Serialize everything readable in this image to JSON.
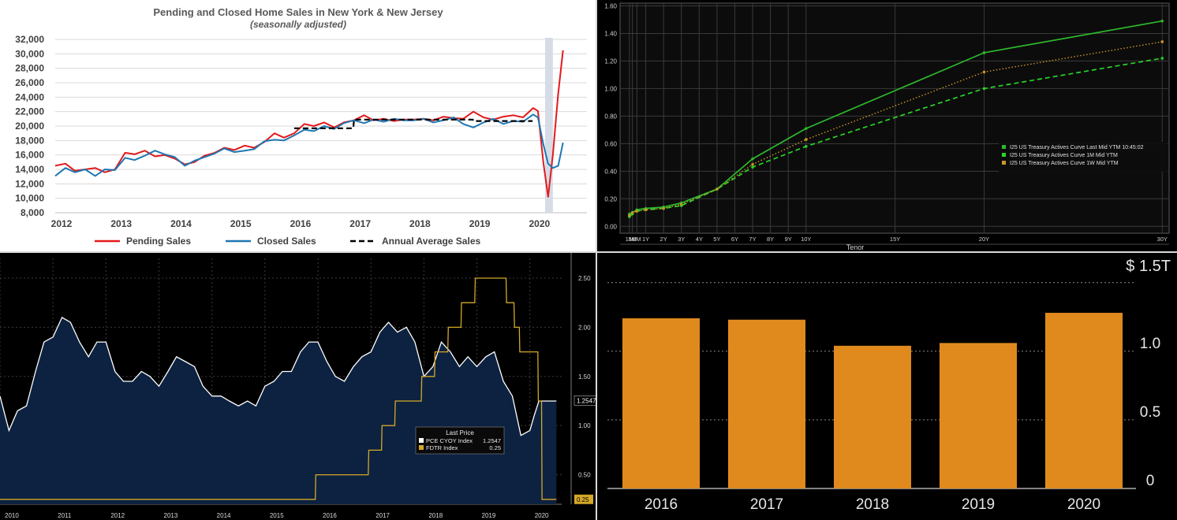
{
  "chart_data": [
    {
      "type": "line",
      "title": "Pending and Closed Home Sales in New York & New Jersey",
      "subtitle": "(seasonally adjusted)",
      "xlabel": "",
      "ylabel": "",
      "x_ticks": [
        "2012",
        "2013",
        "2014",
        "2015",
        "2016",
        "2017",
        "2018",
        "2019",
        "2020"
      ],
      "y_ticks": [
        "8,000",
        "10,000",
        "12,000",
        "14,000",
        "16,000",
        "18,000",
        "20,000",
        "22,000",
        "24,000",
        "26,000",
        "28,000",
        "30,000",
        "32,000"
      ],
      "xlim": [
        2012,
        2020.9
      ],
      "ylim": [
        8000,
        32000
      ],
      "grid": true,
      "legend": "bottom",
      "shaded_period": [
        2020.2,
        2020.33
      ],
      "series": [
        {
          "name": "Pending Sales",
          "color": "#e31a1c",
          "style": "solid",
          "x": [
            2012,
            2012.17,
            2012.33,
            2012.5,
            2012.67,
            2012.83,
            2013,
            2013.17,
            2013.33,
            2013.5,
            2013.67,
            2013.83,
            2014,
            2014.17,
            2014.33,
            2014.5,
            2014.67,
            2014.83,
            2015,
            2015.17,
            2015.33,
            2015.5,
            2015.67,
            2015.83,
            2016,
            2016.17,
            2016.33,
            2016.5,
            2016.67,
            2016.83,
            2017,
            2017.17,
            2017.33,
            2017.5,
            2017.67,
            2017.83,
            2018,
            2018.17,
            2018.33,
            2018.5,
            2018.67,
            2018.83,
            2019,
            2019.17,
            2019.33,
            2019.5,
            2019.67,
            2019.83,
            2020,
            2020.08,
            2020.17,
            2020.25,
            2020.33,
            2020.42,
            2020.5
          ],
          "y": [
            14500,
            14800,
            13800,
            14000,
            14200,
            13600,
            14000,
            16300,
            16100,
            16600,
            15800,
            16000,
            15500,
            14700,
            15000,
            15900,
            16300,
            17000,
            16700,
            17300,
            17000,
            17800,
            19000,
            18400,
            19000,
            20300,
            20000,
            20500,
            19800,
            20500,
            20800,
            21500,
            20800,
            21000,
            20700,
            20900,
            20900,
            21000,
            20800,
            21300,
            21100,
            21000,
            22000,
            21200,
            20900,
            21300,
            21500,
            21200,
            22500,
            22100,
            15000,
            10200,
            16000,
            24500,
            30500
          ]
        },
        {
          "name": "Closed Sales",
          "color": "#1f77b4",
          "style": "solid",
          "x": [
            2012,
            2012.17,
            2012.33,
            2012.5,
            2012.67,
            2012.83,
            2013,
            2013.17,
            2013.33,
            2013.5,
            2013.67,
            2013.83,
            2014,
            2014.17,
            2014.33,
            2014.5,
            2014.67,
            2014.83,
            2015,
            2015.17,
            2015.33,
            2015.5,
            2015.67,
            2015.83,
            2016,
            2016.17,
            2016.33,
            2016.5,
            2016.67,
            2016.83,
            2017,
            2017.17,
            2017.33,
            2017.5,
            2017.67,
            2017.83,
            2018,
            2018.17,
            2018.33,
            2018.5,
            2018.67,
            2018.83,
            2019,
            2019.17,
            2019.33,
            2019.5,
            2019.67,
            2019.83,
            2020,
            2020.08,
            2020.17,
            2020.25,
            2020.33,
            2020.42,
            2020.5
          ],
          "y": [
            13100,
            14200,
            13600,
            14000,
            13100,
            14000,
            13900,
            15600,
            15300,
            15900,
            16600,
            16100,
            15700,
            14500,
            15200,
            15700,
            16200,
            16900,
            16400,
            16600,
            16800,
            17900,
            18100,
            18000,
            18700,
            19500,
            19300,
            20000,
            19600,
            20400,
            20800,
            20400,
            20900,
            20600,
            21000,
            20800,
            20800,
            21000,
            20500,
            20800,
            21200,
            20300,
            19800,
            20500,
            21000,
            20300,
            20700,
            20600,
            21600,
            21200,
            17500,
            14800,
            14200,
            14500,
            17700
          ]
        },
        {
          "name": "Annual Average Sales",
          "color": "#000000",
          "style": "dashed",
          "x": [
            2016,
            2016.99,
            2017,
            2017.99,
            2018,
            2018.99,
            2019,
            2019.99
          ],
          "y": [
            19700,
            19700,
            20900,
            20900,
            20900,
            20900,
            20700,
            20700
          ]
        }
      ]
    },
    {
      "type": "line",
      "title": "",
      "xlabel": "Tenor",
      "ylabel": "",
      "categories": [
        "1M",
        "3M",
        "6M",
        "1Y",
        "2Y",
        "3Y",
        "4Y",
        "5Y",
        "6Y",
        "7Y",
        "8Y",
        "9Y",
        "10Y",
        "15Y",
        "20Y",
        "30Y"
      ],
      "tenor_years": [
        0.083,
        0.25,
        0.5,
        1,
        2,
        3,
        4,
        5,
        6,
        7,
        8,
        9,
        10,
        15,
        20,
        30
      ],
      "y_ticks": [
        "0.00",
        "0.20",
        "0.40",
        "0.60",
        "0.80",
        "1.00",
        "1.20",
        "1.40",
        "1.60"
      ],
      "ylim": [
        -0.05,
        1.62
      ],
      "grid": true,
      "legend": "right",
      "series": [
        {
          "name": "I25 US Treasury Actives Curve Last Mid YTM 10:45:02",
          "color": "#2db82d",
          "style": "solid",
          "x": [
            0.083,
            0.25,
            0.5,
            1,
            2,
            3,
            5,
            7,
            10,
            20,
            30
          ],
          "y": [
            0.09,
            0.1,
            0.12,
            0.13,
            0.14,
            0.17,
            0.27,
            0.49,
            0.71,
            1.26,
            1.49
          ]
        },
        {
          "name": "I25 US Treasury Actives Curve 1M Mid YTM",
          "color": "#28d428",
          "style": "dashed",
          "x": [
            0.083,
            0.25,
            0.5,
            1,
            2,
            3,
            5,
            7,
            10,
            20,
            30
          ],
          "y": [
            0.07,
            0.09,
            0.11,
            0.12,
            0.13,
            0.15,
            0.27,
            0.43,
            0.58,
            1.0,
            1.22
          ]
        },
        {
          "name": "I25 US Treasury Actives Curve 1W Mid YTM",
          "color": "#c8962a",
          "style": "dotted",
          "x": [
            0.083,
            0.25,
            0.5,
            1,
            2,
            3,
            5,
            7,
            10,
            20,
            30
          ],
          "y": [
            0.08,
            0.1,
            0.11,
            0.12,
            0.13,
            0.16,
            0.27,
            0.45,
            0.63,
            1.12,
            1.34
          ]
        }
      ]
    },
    {
      "type": "line",
      "title": "",
      "xlabel": "",
      "ylabel": "",
      "x_ticks": [
        "2010",
        "2011",
        "2012",
        "2013",
        "2014",
        "2015",
        "2016",
        "2017",
        "2018",
        "2019",
        "2020"
      ],
      "y_ticks": [
        "0.50",
        "1.00",
        "1.50",
        "2.00",
        "2.50"
      ],
      "xlim": [
        2010,
        2020.6
      ],
      "ylim": [
        0.2,
        2.7
      ],
      "legend_title": "Last Price",
      "legend": "bottom-right",
      "series": [
        {
          "name": "PCE CYOY Index",
          "last": "1.2547",
          "color": "#ffffff",
          "fill": "#0d2240",
          "x": [
            2010,
            2010.17,
            2010.33,
            2010.5,
            2010.67,
            2010.83,
            2011,
            2011.17,
            2011.33,
            2011.5,
            2011.67,
            2011.83,
            2012,
            2012.17,
            2012.33,
            2012.5,
            2012.67,
            2012.83,
            2013,
            2013.17,
            2013.33,
            2013.5,
            2013.67,
            2013.83,
            2014,
            2014.17,
            2014.33,
            2014.5,
            2014.67,
            2014.83,
            2015,
            2015.17,
            2015.33,
            2015.5,
            2015.67,
            2015.83,
            2016,
            2016.17,
            2016.33,
            2016.5,
            2016.67,
            2016.83,
            2017,
            2017.17,
            2017.33,
            2017.5,
            2017.67,
            2017.83,
            2018,
            2018.17,
            2018.33,
            2018.5,
            2018.67,
            2018.83,
            2019,
            2019.17,
            2019.33,
            2019.5,
            2019.67,
            2019.83,
            2020,
            2020.08,
            2020.17,
            2020.25,
            2020.33,
            2020.42,
            2020.5
          ],
          "y": [
            1.3,
            0.95,
            1.15,
            1.2,
            1.55,
            1.85,
            1.9,
            2.1,
            2.05,
            1.85,
            1.7,
            1.85,
            1.85,
            1.55,
            1.45,
            1.45,
            1.55,
            1.5,
            1.4,
            1.55,
            1.7,
            1.65,
            1.6,
            1.4,
            1.3,
            1.3,
            1.25,
            1.2,
            1.25,
            1.2,
            1.4,
            1.45,
            1.55,
            1.55,
            1.75,
            1.85,
            1.85,
            1.65,
            1.5,
            1.45,
            1.6,
            1.7,
            1.75,
            1.95,
            2.05,
            1.95,
            2.0,
            1.85,
            1.5,
            1.6,
            1.85,
            1.75,
            1.6,
            1.7,
            1.6,
            1.7,
            1.75,
            1.45,
            1.3,
            0.9,
            0.95,
            1.1,
            1.25,
            1.25,
            1.25,
            1.25,
            1.25
          ]
        },
        {
          "name": "FDTR Index",
          "last": "0.25",
          "color": "#d4a82a",
          "x": [
            2010,
            2015.95,
            2015.96,
            2016.95,
            2016.96,
            2017.2,
            2017.21,
            2017.45,
            2017.46,
            2017.95,
            2017.96,
            2018.2,
            2018.21,
            2018.45,
            2018.46,
            2018.7,
            2018.71,
            2018.96,
            2018.97,
            2019.55,
            2019.56,
            2019.7,
            2019.71,
            2019.8,
            2019.81,
            2020.15,
            2020.16,
            2020.22,
            2020.23,
            2020.5
          ],
          "y": [
            0.25,
            0.25,
            0.5,
            0.5,
            0.75,
            0.75,
            1.0,
            1.0,
            1.25,
            1.25,
            1.5,
            1.5,
            1.75,
            1.75,
            2.0,
            2.0,
            2.25,
            2.25,
            2.5,
            2.5,
            2.25,
            2.25,
            2.0,
            2.0,
            1.75,
            1.75,
            1.25,
            1.25,
            0.25,
            0.25
          ]
        }
      ]
    },
    {
      "type": "bar",
      "title": "",
      "xlabel": "",
      "ylabel": "",
      "unit_label": "$ 1.5T",
      "y_ticks": [
        "0",
        "0.5",
        "1.0"
      ],
      "categories": [
        "2016",
        "2017",
        "2018",
        "2019",
        "2020"
      ],
      "values": [
        1.24,
        1.23,
        1.04,
        1.06,
        1.28
      ],
      "ylim": [
        0,
        1.55
      ],
      "grid": true,
      "color": "#e08a1e"
    }
  ]
}
